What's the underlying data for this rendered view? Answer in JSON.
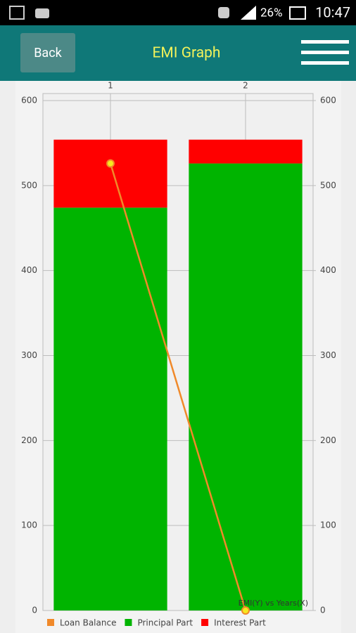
{
  "status_bar": {
    "battery": "26%",
    "time": "10:47"
  },
  "header": {
    "back": "Back",
    "title": "EMI Graph"
  },
  "chart_data": {
    "type": "combo",
    "annotation": "EMI(Y) vs Years(X)",
    "x": [
      1,
      2
    ],
    "xlim": [
      0.5,
      2.5
    ],
    "xticks": [
      1,
      2
    ],
    "ylim": [
      0,
      600
    ],
    "yticks": [
      0,
      100,
      200,
      300,
      400,
      500,
      600
    ],
    "y2lim": [
      0,
      600
    ],
    "y2ticks": [
      0,
      100,
      200,
      300,
      400,
      500,
      600
    ],
    "grid": true,
    "series": [
      {
        "name": "Loan Balance",
        "type": "line",
        "axis": "y2",
        "color": "#f0892a",
        "values": [
          526,
          0
        ]
      },
      {
        "name": "Principal Part",
        "type": "bar",
        "stack": true,
        "color": "#00b400",
        "values": [
          474,
          526
        ]
      },
      {
        "name": "Interest Part",
        "type": "bar",
        "stack": true,
        "color": "#ff0000",
        "values": [
          80,
          28
        ]
      }
    ]
  }
}
